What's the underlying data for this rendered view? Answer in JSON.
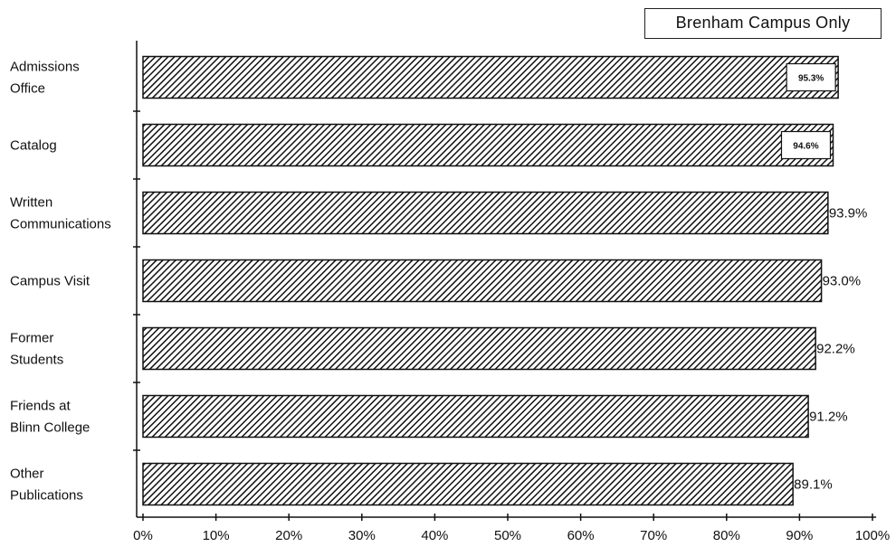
{
  "chart_data": {
    "type": "bar",
    "orientation": "horizontal",
    "title": "",
    "legend": {
      "label": "Brenham Campus Only",
      "placement": "top-right"
    },
    "categories": [
      [
        "Admissions",
        "Office"
      ],
      [
        "Catalog"
      ],
      [
        "Written",
        "Communications"
      ],
      [
        "Campus Visit"
      ],
      [
        "Former",
        "Students"
      ],
      [
        "Friends at",
        "Blinn College"
      ],
      [
        "Other",
        "Publications"
      ]
    ],
    "values": [
      95.3,
      94.6,
      93.9,
      93.0,
      92.2,
      91.2,
      89.1
    ],
    "value_labels": [
      "95.3%",
      "94.6%",
      "93.9%",
      "93.0%",
      "92.2%",
      "91.2%",
      "89.1%"
    ],
    "xlabel": "",
    "ylabel": "",
    "xlim": [
      0,
      100
    ],
    "x_ticks": [
      "0%",
      "10%",
      "20%",
      "30%",
      "40%",
      "50%",
      "60%",
      "70%",
      "80%",
      "90%",
      "100%"
    ],
    "grid": false,
    "bar_fill": "diagonal-hatch",
    "colors": {
      "bar_stroke": "#111111",
      "hatch": "#111111",
      "background": "#ffffff"
    }
  }
}
